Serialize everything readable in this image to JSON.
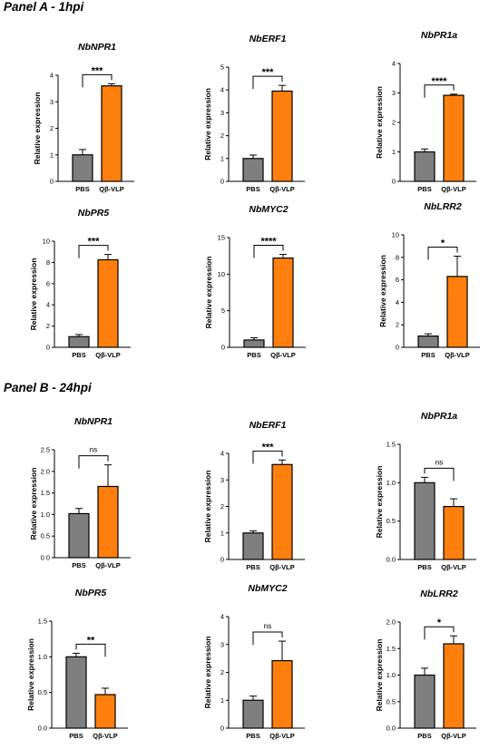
{
  "panels": [
    {
      "title": "Panel A - 1hpi"
    },
    {
      "title": "Panel B - 24hpi"
    }
  ],
  "colors": {
    "PBS": "#7f7f7f",
    "QB-VLP": "#ff7f0e",
    "stroke": "#000000"
  },
  "chart_data": [
    {
      "type": "bar",
      "panel": 0,
      "title": "NbNPR1",
      "ylabel": "Relative expression",
      "categories": [
        "PBS",
        "Qβ-VLP"
      ],
      "values": [
        1.0,
        3.6
      ],
      "errors": [
        0.2,
        0.08
      ],
      "ylim": [
        0,
        4
      ],
      "yticks": [
        "0",
        "1",
        "2",
        "3",
        "4"
      ],
      "significance": "***"
    },
    {
      "type": "bar",
      "panel": 0,
      "title": "NbERF1",
      "ylabel": "Relative expression",
      "categories": [
        "PBS",
        "Qβ-VLP"
      ],
      "values": [
        1.0,
        3.95
      ],
      "errors": [
        0.15,
        0.25
      ],
      "ylim": [
        0,
        5
      ],
      "yticks": [
        "0",
        "1",
        "2",
        "3",
        "4",
        "5"
      ],
      "significance": "***"
    },
    {
      "type": "bar",
      "panel": 0,
      "title": "NbPR1a",
      "ylabel": "Relative expression",
      "categories": [
        "PBS",
        "Qβ-VLP"
      ],
      "values": [
        1.0,
        2.92
      ],
      "errors": [
        0.1,
        0.04
      ],
      "ylim": [
        0,
        4
      ],
      "yticks": [
        "0",
        "1",
        "2",
        "3",
        "4"
      ],
      "significance": "****"
    },
    {
      "type": "bar",
      "panel": 0,
      "title": "NbPR5",
      "ylabel": "Relative expression",
      "categories": [
        "PBS",
        "Qβ-VLP"
      ],
      "values": [
        1.0,
        8.25
      ],
      "errors": [
        0.2,
        0.5
      ],
      "ylim": [
        0,
        10
      ],
      "yticks": [
        "0",
        "2",
        "4",
        "6",
        "8",
        "10"
      ],
      "significance": "***"
    },
    {
      "type": "bar",
      "panel": 0,
      "title": "NbMYC2",
      "ylabel": "Relative expression",
      "categories": [
        "PBS",
        "Qβ-VLP"
      ],
      "values": [
        1.0,
        12.2
      ],
      "errors": [
        0.3,
        0.5
      ],
      "ylim": [
        0,
        15
      ],
      "yticks": [
        "0",
        "5",
        "10",
        "15"
      ],
      "significance": "****"
    },
    {
      "type": "bar",
      "panel": 0,
      "title": "NbLRR2",
      "ylabel": "Relative expression",
      "categories": [
        "PBS",
        "Qβ-VLP"
      ],
      "values": [
        1.0,
        6.3
      ],
      "errors": [
        0.2,
        1.8
      ],
      "ylim": [
        0,
        10
      ],
      "yticks": [
        "0",
        "2",
        "4",
        "6",
        "8",
        "10"
      ],
      "significance": "*"
    },
    {
      "type": "bar",
      "panel": 1,
      "title": "NbNPR1",
      "ylabel": "Relative expression",
      "categories": [
        "PBS",
        "Qβ-VLP"
      ],
      "values": [
        1.02,
        1.65
      ],
      "errors": [
        0.12,
        0.5
      ],
      "ylim": [
        0,
        2.5
      ],
      "yticks": [
        "0.0",
        "0.5",
        "1.0",
        "1.5",
        "2.0",
        "2.5"
      ],
      "significance": "ns"
    },
    {
      "type": "bar",
      "panel": 1,
      "title": "NbERF1",
      "ylabel": "Relative expression",
      "categories": [
        "PBS",
        "Qβ-VLP"
      ],
      "values": [
        1.0,
        3.58
      ],
      "errors": [
        0.08,
        0.17
      ],
      "ylim": [
        0,
        4
      ],
      "yticks": [
        "0",
        "1",
        "2",
        "3",
        "4"
      ],
      "significance": "***"
    },
    {
      "type": "bar",
      "panel": 1,
      "title": "NbPR1a",
      "ylabel": "Relative expression",
      "categories": [
        "PBS",
        "Qβ-VLP"
      ],
      "values": [
        1.0,
        0.69
      ],
      "errors": [
        0.07,
        0.1
      ],
      "ylim": [
        0,
        1.5
      ],
      "yticks": [
        "0.0",
        "0.5",
        "1.0",
        "1.5"
      ],
      "significance": "ns"
    },
    {
      "type": "bar",
      "panel": 1,
      "title": "NbPR5",
      "ylabel": "Relative expression",
      "categories": [
        "PBS",
        "Qβ-VLP"
      ],
      "values": [
        1.0,
        0.47
      ],
      "errors": [
        0.05,
        0.09
      ],
      "ylim": [
        0,
        1.5
      ],
      "yticks": [
        "0.0",
        "0.5",
        "1.0",
        "1.5"
      ],
      "significance": "**"
    },
    {
      "type": "bar",
      "panel": 1,
      "title": "NbMYC2",
      "ylabel": "Relative expression",
      "categories": [
        "PBS",
        "Qβ-VLP"
      ],
      "values": [
        1.0,
        2.42
      ],
      "errors": [
        0.15,
        0.7
      ],
      "ylim": [
        0,
        4
      ],
      "yticks": [
        "0",
        "1",
        "2",
        "3",
        "4"
      ],
      "significance": "ns"
    },
    {
      "type": "bar",
      "panel": 1,
      "title": "NbLRR2",
      "ylabel": "Relative expression",
      "categories": [
        "PBS",
        "Qβ-VLP"
      ],
      "values": [
        1.0,
        1.59
      ],
      "errors": [
        0.13,
        0.15
      ],
      "ylim": [
        0,
        2.0
      ],
      "yticks": [
        "0.0",
        "0.5",
        "1.0",
        "1.5",
        "2.0"
      ],
      "significance": "*"
    }
  ]
}
